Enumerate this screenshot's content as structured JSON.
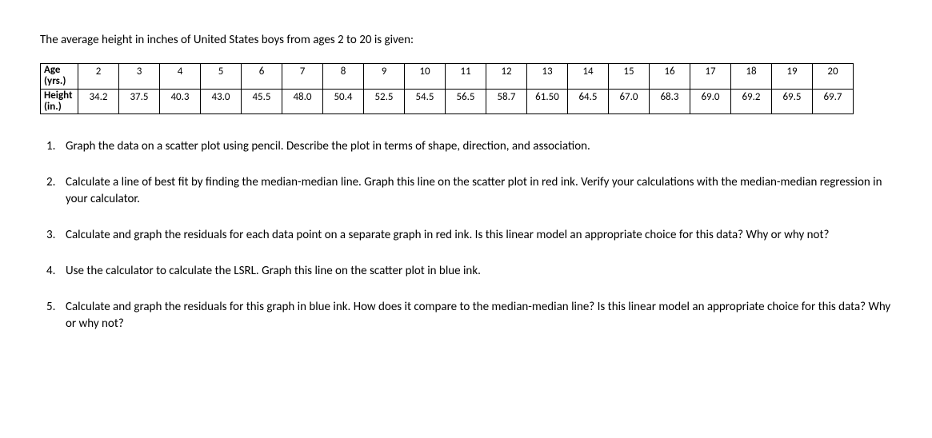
{
  "intro": "The average height in inches of United States boys from ages 2 to 20 is given:",
  "table": {
    "row_labels": [
      "Age (yrs.)",
      "Height (in.)"
    ],
    "ages": [
      "2",
      "3",
      "4",
      "5",
      "6",
      "7",
      "8",
      "9",
      "10",
      "11",
      "12",
      "13",
      "14",
      "15",
      "16",
      "17",
      "18",
      "19",
      "20"
    ],
    "heights": [
      "34.2",
      "37.5",
      "40.3",
      "43.0",
      "45.5",
      "48.0",
      "50.4",
      "52.5",
      "54.5",
      "56.5",
      "58.7",
      "61.50",
      "64.5",
      "67.0",
      "68.3",
      "69.0",
      "69.2",
      "69.5",
      "69.7"
    ],
    "cell_fontsize": 13,
    "border_color": "#000000"
  },
  "questions": [
    "Graph the data on a scatter plot using pencil. Describe the plot in terms of shape, direction, and association.",
    "Calculate a line of best fit by finding the median-median line.  Graph this line on the scatter plot in red ink.  Verify your calculations with the median-median regression in your calculator.",
    "Calculate and graph the residuals for each data point on a separate graph in red ink.  Is this linear model an appropriate choice for this data?  Why or why not?",
    "Use the calculator to calculate the LSRL.  Graph this line on the scatter plot in blue ink.",
    "Calculate and graph the residuals for this graph in blue ink.  How does it compare to the median-median line? Is this linear model an appropriate choice for this data?  Why or why not?"
  ],
  "colors": {
    "text": "#000000",
    "background": "#ffffff"
  },
  "typography": {
    "body_fontsize": 15,
    "font_family": "Calibri, Arial, sans-serif"
  }
}
